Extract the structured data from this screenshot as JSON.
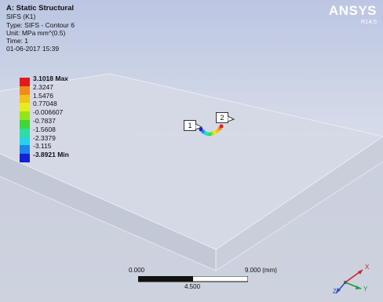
{
  "info": {
    "title": "A: Static Structural",
    "result": "SIFS (K1)",
    "type": "Type: SIFS - Contour 6",
    "unit": "Unit: MPa mm^(0.5)",
    "time": "Time: 1",
    "date": "01-06-2017 15:39"
  },
  "logo": {
    "brand": "ANSYS",
    "release": "R14.5"
  },
  "legend": {
    "colors": [
      "#e31a1c",
      "#f08b1b",
      "#f2c21b",
      "#e8ec1c",
      "#98e21a",
      "#3ed63b",
      "#2fdda3",
      "#28d0e8",
      "#1b86ec",
      "#1222d8"
    ],
    "labels": [
      "3.1018 Max",
      "2.3247",
      "1.5476",
      "0.77048",
      "-0.006607",
      "-0.7837",
      "-1.5608",
      "-2.3379",
      "-3.115",
      "-3.8921 Min"
    ]
  },
  "callouts": [
    {
      "label": "1"
    },
    {
      "label": "2"
    }
  ],
  "scale_bar": {
    "left": "0.000",
    "right": "9.000 (mm)",
    "middle": "4.500"
  },
  "triad": {
    "x": "X",
    "y": "Y",
    "z": "Z",
    "x_color": "#d62020",
    "y_color": "#1e9a3a",
    "z_color": "#2f4fbf"
  }
}
